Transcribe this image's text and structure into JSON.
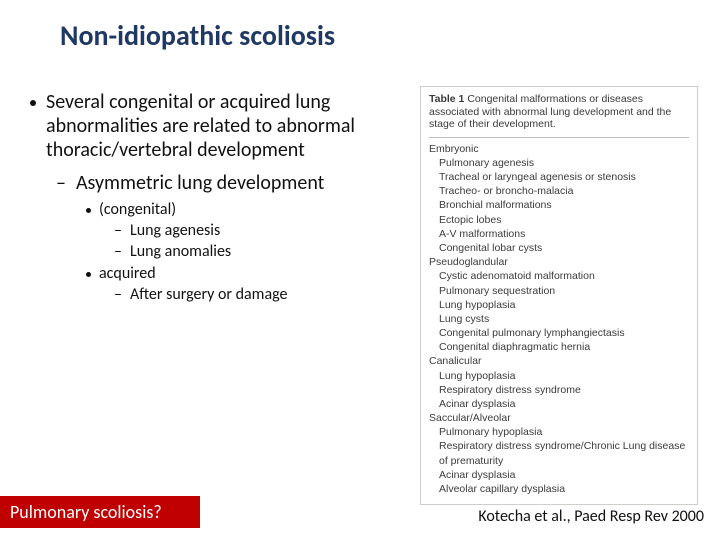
{
  "title": "Non-idiopathic scoliosis",
  "left": {
    "main_bullet": "Several congenital or acquired lung abnormalities are related to abnormal thoracic/vertebral development",
    "sub1": "Asymmetric lung development",
    "cong_label": "(congenital)",
    "cong_items": [
      "Lung agenesis",
      "Lung anomalies"
    ],
    "acq_label": "acquired",
    "acq_items": [
      "After surgery or damage"
    ]
  },
  "bottom_box": "Pulmonary scoliosis?",
  "citation": "Kotecha et al., Paed Resp Rev 2000",
  "table": {
    "caption_lead": "Table 1",
    "caption_rest": "  Congenital malformations or diseases associated with abnormal lung development and the stage of their development.",
    "sections": [
      {
        "head": "Embryonic",
        "items": [
          "Pulmonary agenesis",
          "Tracheal or laryngeal agenesis or stenosis",
          "Tracheo- or broncho-malacia",
          "Bronchial malformations",
          "Ectopic lobes",
          "A-V malformations",
          "Congenital lobar cysts"
        ]
      },
      {
        "head": "Pseudoglandular",
        "items": [
          "Cystic adenomatoid malformation",
          "Pulmonary sequestration",
          "Lung hypoplasia",
          "Lung cysts",
          "Congenital pulmonary lymphangiectasis",
          "Congenital diaphragmatic hernia"
        ]
      },
      {
        "head": "Canalicular",
        "items": [
          "Lung hypoplasia",
          "Respiratory distress syndrome",
          "Acinar dysplasia"
        ]
      },
      {
        "head": "Saccular/Alveolar",
        "items": [
          "Pulmonary hypoplasia",
          "Respiratory distress syndrome/Chronic Lung disease of prematurity",
          "Acinar dysplasia",
          "Alveolar capillary dysplasia"
        ]
      }
    ]
  },
  "colors": {
    "title": "#203864",
    "box_bg": "#c00000",
    "box_text": "#ffffff",
    "text": "#111111"
  }
}
